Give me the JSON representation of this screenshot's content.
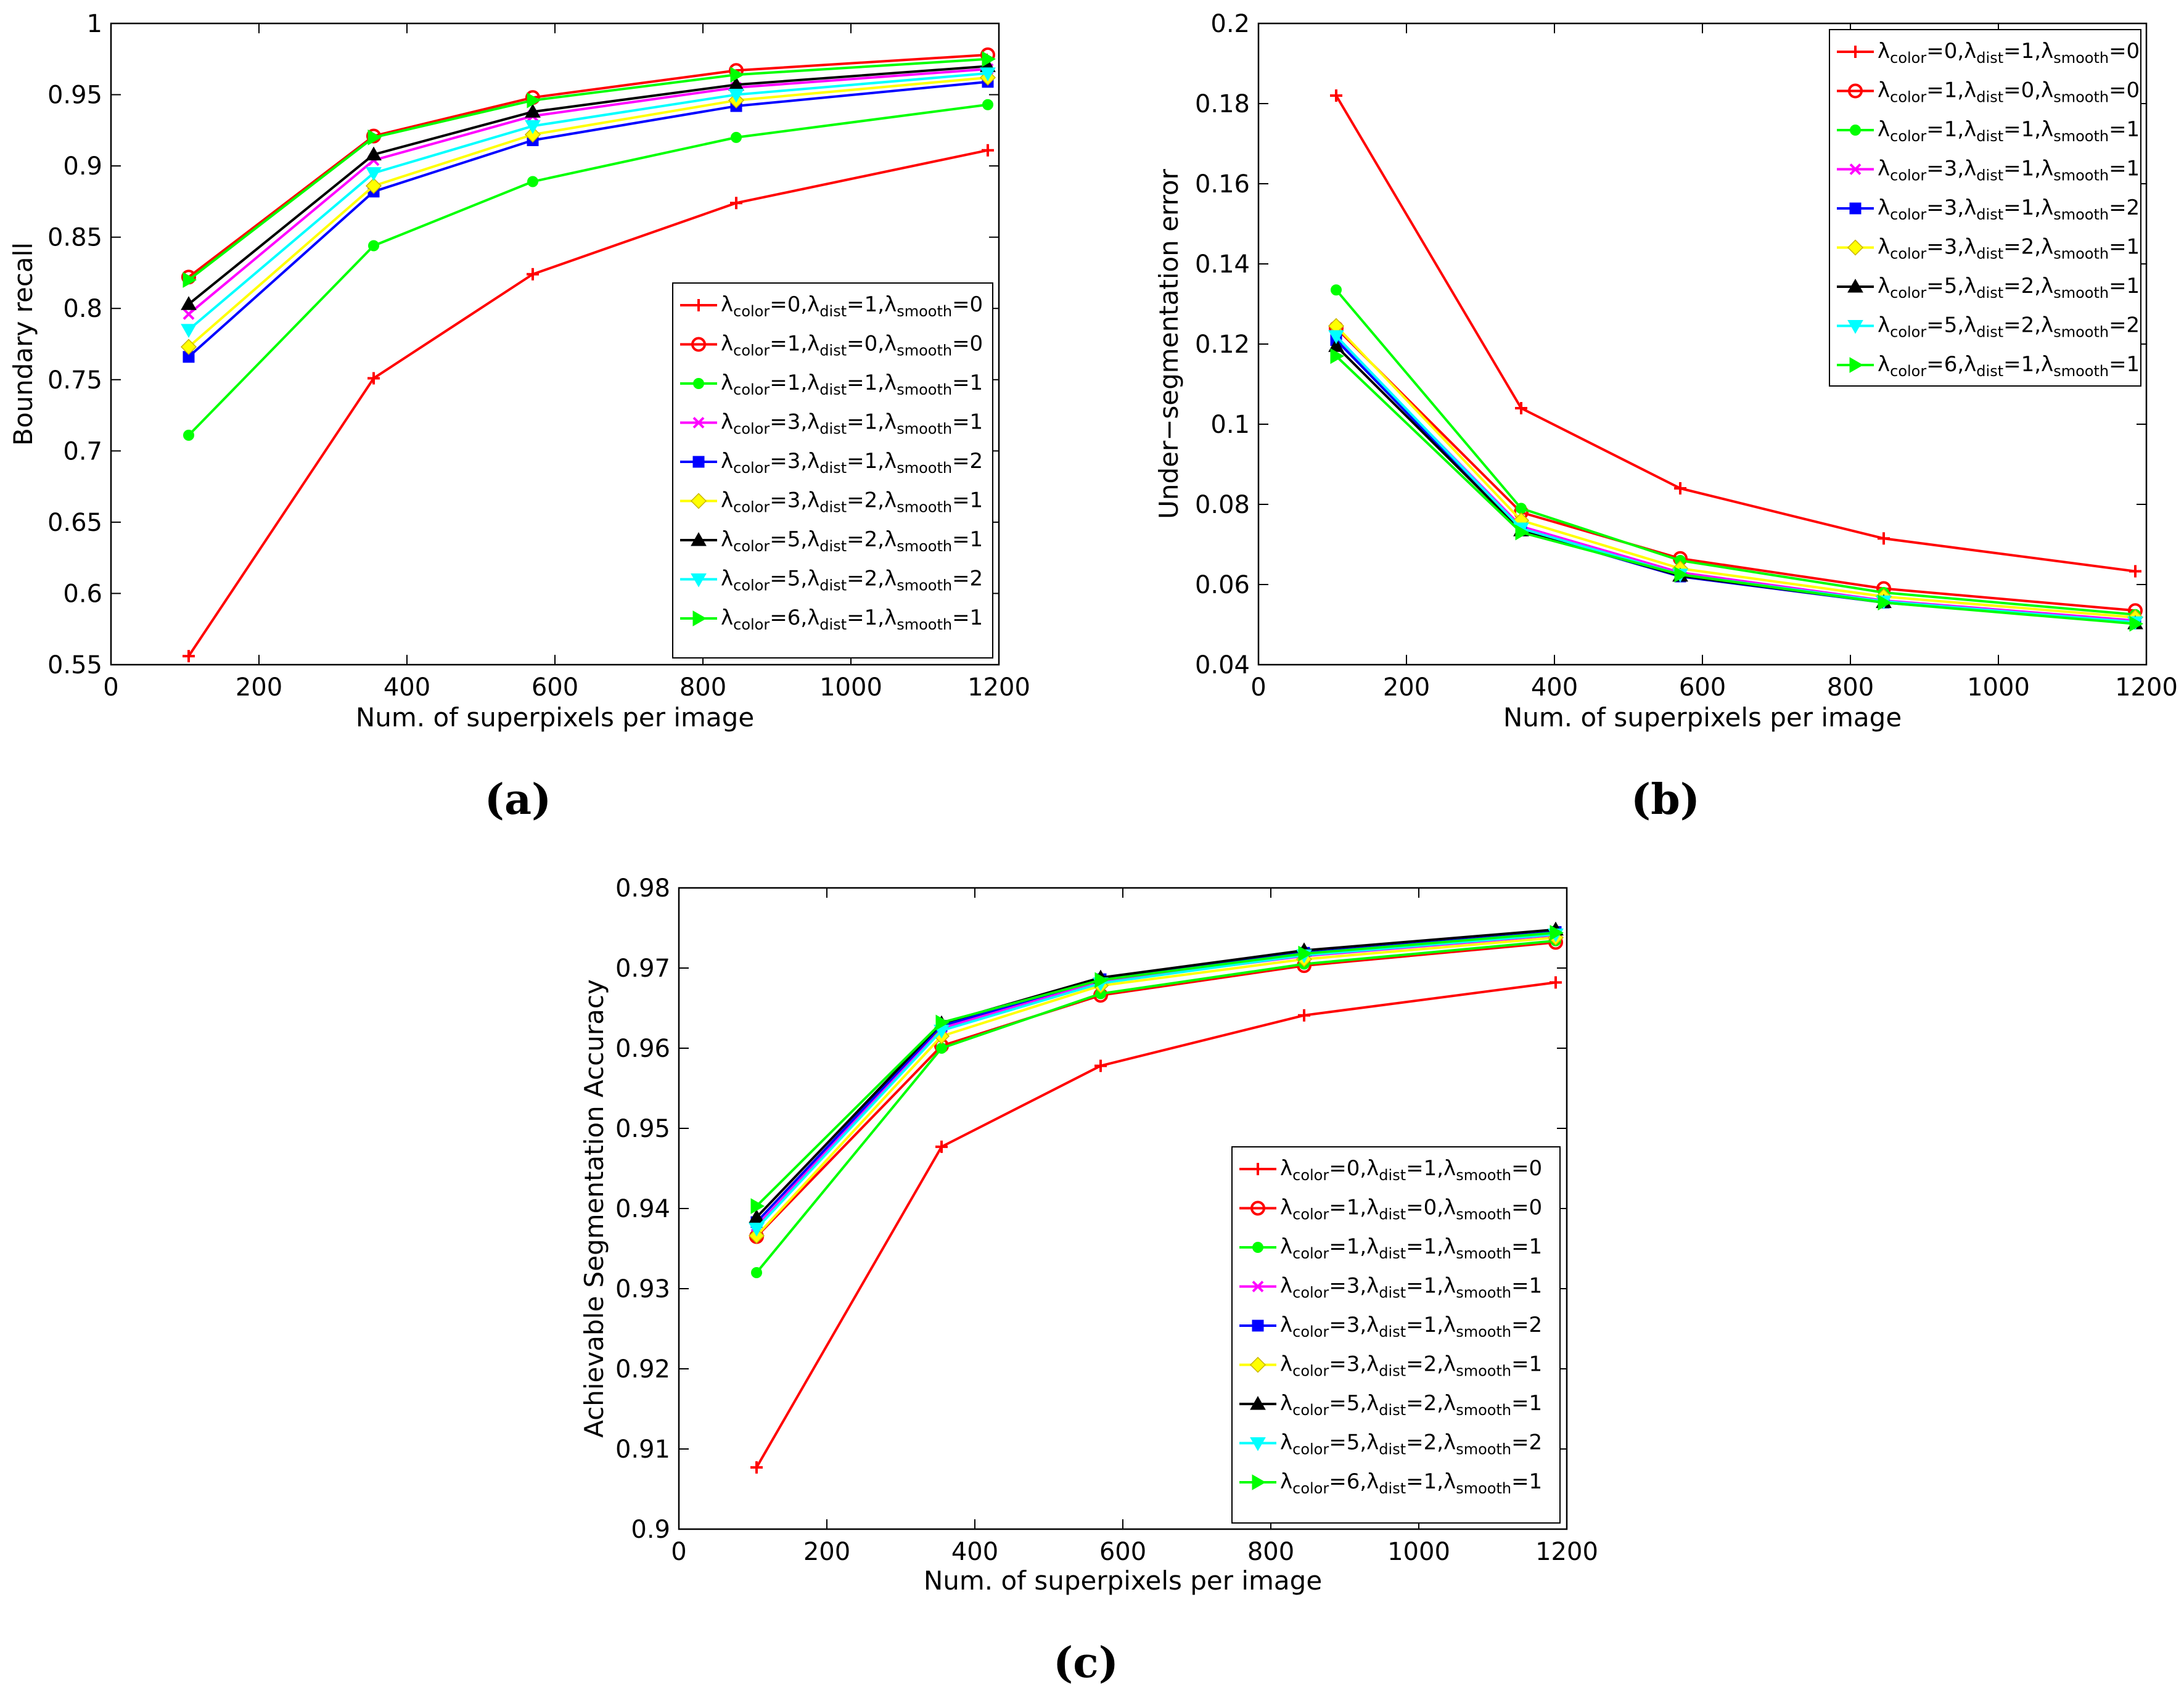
{
  "colors": {
    "red": "#ff0000",
    "green": "#00ff00",
    "magenta": "#ff00ff",
    "blue": "#0000ff",
    "yellow": "#ffff00",
    "black": "#000000",
    "cyan": "#00ffff"
  },
  "legend_labels": [
    {
      "name": "λcolor=0,λdist=1,λsmooth=0",
      "parts": {
        "c": "0",
        "d": "1",
        "s": "0"
      },
      "color_key": "red",
      "marker": "plus"
    },
    {
      "name": "λcolor=1,λdist=0,λsmooth=0",
      "parts": {
        "c": "1",
        "d": "0",
        "s": "0"
      },
      "color_key": "red",
      "marker": "circle"
    },
    {
      "name": "λcolor=1,λdist=1,λsmooth=1",
      "parts": {
        "c": "1",
        "d": "1",
        "s": "1"
      },
      "color_key": "green",
      "marker": "dot"
    },
    {
      "name": "λcolor=3,λdist=1,λsmooth=1",
      "parts": {
        "c": "3",
        "d": "1",
        "s": "1"
      },
      "color_key": "magenta",
      "marker": "x"
    },
    {
      "name": "λcolor=3,λdist=1,λsmooth=2",
      "parts": {
        "c": "3",
        "d": "1",
        "s": "2"
      },
      "color_key": "blue",
      "marker": "square"
    },
    {
      "name": "λcolor=3,λdist=2,λsmooth=1",
      "parts": {
        "c": "3",
        "d": "2",
        "s": "1"
      },
      "color_key": "yellow",
      "marker": "diamond"
    },
    {
      "name": "λcolor=5,λdist=2,λsmooth=1",
      "parts": {
        "c": "5",
        "d": "2",
        "s": "1"
      },
      "color_key": "black",
      "marker": "triangle-up"
    },
    {
      "name": "λcolor=5,λdist=2,λsmooth=2",
      "parts": {
        "c": "5",
        "d": "2",
        "s": "2"
      },
      "color_key": "cyan",
      "marker": "triangle-down"
    },
    {
      "name": "λcolor=6,λdist=1,λsmooth=1",
      "parts": {
        "c": "6",
        "d": "1",
        "s": "1"
      },
      "color_key": "green",
      "marker": "triangle-right"
    }
  ],
  "legend_strings": {
    "color": "color",
    "dist": "dist",
    "smooth": "smooth",
    "lambda": "λ",
    "eq": "="
  },
  "chart_data": [
    {
      "type": "line",
      "panel_label": "(a)",
      "xlabel": "Num. of superpixels per image",
      "ylabel": "Boundary recall",
      "xlim": [
        0,
        1200
      ],
      "ylim": [
        0.55,
        1
      ],
      "xticks": [
        0,
        200,
        400,
        600,
        800,
        1000,
        1200
      ],
      "yticks": [
        0.55,
        0.6,
        0.65,
        0.7,
        0.75,
        0.8,
        0.85,
        0.9,
        0.95,
        1
      ],
      "ytick_labels": [
        "0.55",
        "0.6",
        "0.65",
        "0.7",
        "0.75",
        "0.8",
        "0.85",
        "0.9",
        "0.95",
        "1"
      ],
      "xtick_labels": [
        "0",
        "200",
        "400",
        "600",
        "800",
        "1000",
        "1200"
      ],
      "legend_position": "lower-right",
      "x": [
        105,
        355,
        570,
        845,
        1185
      ],
      "series": [
        {
          "name": "λcolor=0,λdist=1,λsmooth=0",
          "values": [
            0.556,
            0.751,
            0.824,
            0.874,
            0.911
          ]
        },
        {
          "name": "λcolor=1,λdist=0,λsmooth=0",
          "values": [
            0.822,
            0.921,
            0.948,
            0.967,
            0.978
          ]
        },
        {
          "name": "λcolor=1,λdist=1,λsmooth=1",
          "values": [
            0.711,
            0.844,
            0.889,
            0.92,
            0.943
          ]
        },
        {
          "name": "λcolor=3,λdist=1,λsmooth=1",
          "values": [
            0.796,
            0.904,
            0.935,
            0.955,
            0.968
          ]
        },
        {
          "name": "λcolor=3,λdist=1,λsmooth=2",
          "values": [
            0.766,
            0.882,
            0.918,
            0.942,
            0.959
          ]
        },
        {
          "name": "λcolor=3,λdist=2,λsmooth=1",
          "values": [
            0.773,
            0.886,
            0.922,
            0.946,
            0.962
          ]
        },
        {
          "name": "λcolor=5,λdist=2,λsmooth=1",
          "values": [
            0.803,
            0.908,
            0.938,
            0.957,
            0.97
          ]
        },
        {
          "name": "λcolor=5,λdist=2,λsmooth=2",
          "values": [
            0.785,
            0.895,
            0.928,
            0.95,
            0.965
          ]
        },
        {
          "name": "λcolor=6,λdist=1,λsmooth=1",
          "values": [
            0.82,
            0.92,
            0.946,
            0.964,
            0.975
          ]
        }
      ]
    },
    {
      "type": "line",
      "panel_label": "(b)",
      "xlabel": "Num. of superpixels per image",
      "ylabel": "Under−segmentation error",
      "xlim": [
        0,
        1200
      ],
      "ylim": [
        0.04,
        0.2
      ],
      "xticks": [
        0,
        200,
        400,
        600,
        800,
        1000,
        1200
      ],
      "yticks": [
        0.04,
        0.06,
        0.08,
        0.1,
        0.12,
        0.14,
        0.16,
        0.18,
        0.2
      ],
      "ytick_labels": [
        "0.04",
        "0.06",
        "0.08",
        "0.1",
        "0.12",
        "0.14",
        "0.16",
        "0.18",
        "0.2"
      ],
      "xtick_labels": [
        "0",
        "200",
        "400",
        "600",
        "800",
        "1000",
        "1200"
      ],
      "legend_position": "top-right",
      "x": [
        105,
        355,
        570,
        845,
        1185
      ],
      "series": [
        {
          "name": "λcolor=0,λdist=1,λsmooth=0",
          "values": [
            0.182,
            0.104,
            0.084,
            0.0715,
            0.0633
          ]
        },
        {
          "name": "λcolor=1,λdist=0,λsmooth=0",
          "values": [
            0.124,
            0.078,
            0.0665,
            0.059,
            0.0535
          ]
        },
        {
          "name": "λcolor=1,λdist=1,λsmooth=1",
          "values": [
            0.1335,
            0.079,
            0.066,
            0.058,
            0.0525
          ]
        },
        {
          "name": "λcolor=3,λdist=1,λsmooth=1",
          "values": [
            0.1215,
            0.0745,
            0.063,
            0.056,
            0.051
          ]
        },
        {
          "name": "λcolor=3,λdist=1,λsmooth=2",
          "values": [
            0.121,
            0.0735,
            0.062,
            0.0555,
            0.0505
          ]
        },
        {
          "name": "λcolor=3,λdist=2,λsmooth=1",
          "values": [
            0.1245,
            0.076,
            0.064,
            0.057,
            0.0518
          ]
        },
        {
          "name": "λcolor=5,λdist=2,λsmooth=1",
          "values": [
            0.1195,
            0.0735,
            0.0622,
            0.0556,
            0.0503
          ]
        },
        {
          "name": "λcolor=5,λdist=2,λsmooth=2",
          "values": [
            0.122,
            0.074,
            0.0625,
            0.0558,
            0.0506
          ]
        },
        {
          "name": "λcolor=6,λdist=1,λsmooth=1",
          "values": [
            0.117,
            0.073,
            0.0625,
            0.0555,
            0.0502
          ]
        }
      ]
    },
    {
      "type": "line",
      "panel_label": "(c)",
      "xlabel": "Num. of superpixels per image",
      "ylabel": "Achievable Segmentation Accuracy",
      "xlim": [
        0,
        1200
      ],
      "ylim": [
        0.9,
        0.98
      ],
      "xticks": [
        0,
        200,
        400,
        600,
        800,
        1000,
        1200
      ],
      "yticks": [
        0.9,
        0.91,
        0.92,
        0.93,
        0.94,
        0.95,
        0.96,
        0.97,
        0.98
      ],
      "ytick_labels": [
        "0.9",
        "0.91",
        "0.92",
        "0.93",
        "0.94",
        "0.95",
        "0.96",
        "0.97",
        "0.98"
      ],
      "xtick_labels": [
        "0",
        "200",
        "400",
        "600",
        "800",
        "1000",
        "1200"
      ],
      "legend_position": "lower-right",
      "x": [
        105,
        355,
        570,
        845,
        1185
      ],
      "series": [
        {
          "name": "λcolor=0,λdist=1,λsmooth=0",
          "values": [
            0.9077,
            0.9477,
            0.9578,
            0.9641,
            0.9682
          ]
        },
        {
          "name": "λcolor=1,λdist=0,λsmooth=0",
          "values": [
            0.9365,
            0.9603,
            0.9666,
            0.9703,
            0.9732
          ]
        },
        {
          "name": "λcolor=1,λdist=1,λsmooth=1",
          "values": [
            0.932,
            0.96,
            0.9668,
            0.9705,
            0.9734
          ]
        },
        {
          "name": "λcolor=3,λdist=1,λsmooth=1",
          "values": [
            0.9378,
            0.9625,
            0.9683,
            0.9715,
            0.9741
          ]
        },
        {
          "name": "λcolor=3,λdist=1,λsmooth=2",
          "values": [
            0.9383,
            0.9628,
            0.9686,
            0.9719,
            0.9745
          ]
        },
        {
          "name": "λcolor=3,λdist=2,λsmooth=1",
          "values": [
            0.9366,
            0.9615,
            0.9678,
            0.9711,
            0.9738
          ]
        },
        {
          "name": "λcolor=5,λdist=2,λsmooth=1",
          "values": [
            0.9389,
            0.9631,
            0.9688,
            0.9722,
            0.9748
          ]
        },
        {
          "name": "λcolor=5,λdist=2,λsmooth=2",
          "values": [
            0.9375,
            0.9622,
            0.9681,
            0.9716,
            0.9742
          ]
        },
        {
          "name": "λcolor=6,λdist=1,λsmooth=1",
          "values": [
            0.9403,
            0.9632,
            0.9685,
            0.9718,
            0.9744
          ]
        }
      ]
    }
  ]
}
